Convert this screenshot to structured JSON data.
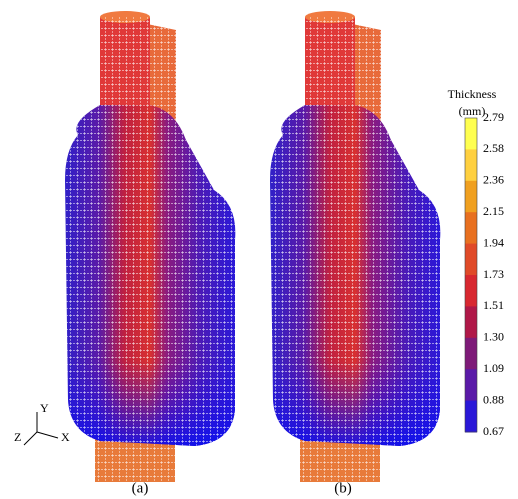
{
  "colorbar": {
    "title": "Thickness",
    "unit": "(mm)",
    "labels": [
      "2.79",
      "2.58",
      "2.36",
      "2.15",
      "1.94",
      "1.73",
      "1.51",
      "1.30",
      "1.09",
      "0.88",
      "0.67"
    ]
  },
  "panels": [
    "(a)",
    "(b)"
  ],
  "axes": {
    "x": "X",
    "y": "Y",
    "z": "Z"
  }
}
